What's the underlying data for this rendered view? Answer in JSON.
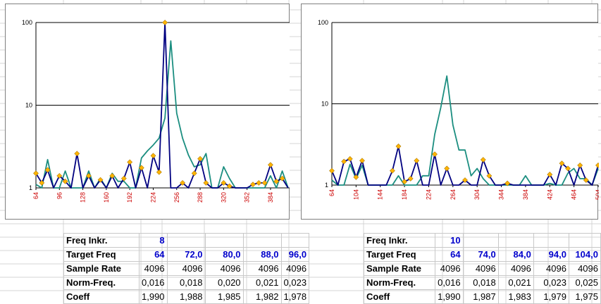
{
  "colors": {
    "series_main": "#000080",
    "series_ref": "#1b8e80",
    "marker": "#ffb400",
    "tick_label": "#cc0000"
  },
  "chart_data": [
    {
      "type": "line",
      "yscale": "log",
      "ylim": [
        1,
        100
      ],
      "yticks": [
        "1",
        "10",
        "100"
      ],
      "xlim": [
        64,
        410
      ],
      "xticks": [
        "64",
        "96",
        "128",
        "160",
        "192",
        "224",
        "256",
        "288",
        "320",
        "352",
        "384"
      ],
      "grid": "horizontal",
      "series": [
        {
          "x": [
            64,
            72,
            80,
            88,
            96,
            104,
            112,
            120,
            128,
            136,
            144,
            152,
            160,
            168,
            176,
            184,
            192,
            200,
            208,
            216,
            224,
            232,
            240,
            248,
            256,
            264,
            272,
            280,
            288,
            296,
            304,
            312,
            320,
            328,
            336,
            344,
            352,
            360,
            368,
            376,
            384,
            392,
            400,
            408
          ],
          "values": [
            1.1,
            1.0,
            2.2,
            1.0,
            1.0,
            1.6,
            1.0,
            1.0,
            1.0,
            1.6,
            1.0,
            1.3,
            1.0,
            1.5,
            1.2,
            1.2,
            1.0,
            1.0,
            2.3,
            2.8,
            3.3,
            4.0,
            7.0,
            60.0,
            8.0,
            4.0,
            2.5,
            1.8,
            1.9,
            2.6,
            1.0,
            1.0,
            1.8,
            1.3,
            1.0,
            1.0,
            1.0,
            1.0,
            1.0,
            1.0,
            1.4,
            1.0,
            1.6,
            1.0
          ]
        },
        {
          "x": [
            64,
            72,
            80,
            88,
            96,
            104,
            112,
            120,
            128,
            136,
            144,
            152,
            160,
            168,
            176,
            184,
            192,
            200,
            208,
            216,
            224,
            232,
            240,
            248,
            256,
            264,
            272,
            280,
            288,
            296,
            304,
            312,
            320,
            328,
            336,
            344,
            352,
            360,
            368,
            376,
            384,
            392,
            400,
            408
          ],
          "values": [
            1.5,
            1.15,
            1.65,
            1.0,
            1.4,
            1.2,
            1.0,
            2.6,
            1.0,
            1.4,
            1.0,
            1.25,
            1.0,
            1.4,
            1.0,
            1.3,
            2.05,
            1.0,
            1.75,
            1.0,
            2.45,
            1.55,
            100,
            1.0,
            1.0,
            1.15,
            1.0,
            1.5,
            2.25,
            1.15,
            1.0,
            1.0,
            1.15,
            1.05,
            1.0,
            1.0,
            1.0,
            1.1,
            1.15,
            1.15,
            1.9,
            1.2,
            1.3,
            1.0
          ]
        }
      ]
    },
    {
      "type": "line",
      "yscale": "log",
      "ylim": [
        1,
        100
      ],
      "yticks": [
        "1",
        "10",
        "100"
      ],
      "xlim": [
        64,
        504
      ],
      "xticks": [
        "64",
        "104",
        "144",
        "184",
        "224",
        "264",
        "304",
        "344",
        "384",
        "424",
        "464",
        "504"
      ],
      "grid": "horizontal",
      "series": [
        {
          "x": [
            64,
            74,
            84,
            94,
            104,
            114,
            124,
            134,
            144,
            154,
            164,
            174,
            184,
            194,
            204,
            214,
            224,
            234,
            244,
            254,
            264,
            274,
            284,
            294,
            304,
            314,
            324,
            334,
            344,
            354,
            364,
            374,
            384,
            394,
            404,
            414,
            424,
            434,
            444,
            454,
            464,
            474,
            484,
            494,
            504
          ],
          "values": [
            1.15,
            1.0,
            1.0,
            1.8,
            1.2,
            1.75,
            1.0,
            1.0,
            1.0,
            1.0,
            1.0,
            1.3,
            1.0,
            1.0,
            1.0,
            1.3,
            1.3,
            4.2,
            9.0,
            22.0,
            5.5,
            2.7,
            2.7,
            1.3,
            1.6,
            1.2,
            1.0,
            1.0,
            1.0,
            1.0,
            1.0,
            1.0,
            1.3,
            1.0,
            1.0,
            1.0,
            1.05,
            1.0,
            1.0,
            1.4,
            1.6,
            1.2,
            1.2,
            1.0,
            1.6
          ]
        },
        {
          "x": [
            64,
            74,
            84,
            94,
            104,
            114,
            124,
            134,
            144,
            154,
            164,
            174,
            184,
            194,
            204,
            214,
            224,
            234,
            244,
            254,
            264,
            274,
            284,
            294,
            304,
            314,
            324,
            334,
            344,
            354,
            364,
            374,
            384,
            394,
            404,
            414,
            424,
            434,
            444,
            454,
            464,
            474,
            484,
            494,
            504
          ],
          "values": [
            1.5,
            1.0,
            1.95,
            2.1,
            1.25,
            2.0,
            1.0,
            1.0,
            1.0,
            1.0,
            1.5,
            3.0,
            1.1,
            1.2,
            2.0,
            1.0,
            1.0,
            2.4,
            1.0,
            1.6,
            1.0,
            1.0,
            1.15,
            1.0,
            1.0,
            2.05,
            1.3,
            1.0,
            1.0,
            1.05,
            1.0,
            1.0,
            1.0,
            1.0,
            1.0,
            1.0,
            1.35,
            1.0,
            1.85,
            1.6,
            1.0,
            1.75,
            1.15,
            1.0,
            1.75
          ]
        }
      ]
    }
  ],
  "tables": [
    {
      "rows": [
        {
          "label": "Freq Inkr.",
          "cells": [
            "8"
          ],
          "blue": true
        },
        {
          "label": "Target Freq",
          "cells": [
            "64",
            "72,0",
            "80,0",
            "88,0",
            "96,0"
          ],
          "blue": true
        },
        {
          "label": "Sample Rate",
          "cells": [
            "4096",
            "4096",
            "4096",
            "4096",
            "4096"
          ],
          "blue": false
        },
        {
          "label": "Norm-Freq.",
          "cells": [
            "0,016",
            "0,018",
            "0,020",
            "0,021",
            "0,023"
          ],
          "blue": false
        },
        {
          "label": "Coeff",
          "cells": [
            "1,990",
            "1,988",
            "1,985",
            "1,982",
            "1,978"
          ],
          "blue": false
        }
      ]
    },
    {
      "rows": [
        {
          "label": "Freq Inkr.",
          "cells": [
            "10"
          ],
          "blue": true
        },
        {
          "label": "Target Freq",
          "cells": [
            "64",
            "74,0",
            "84,0",
            "94,0",
            "104,0"
          ],
          "blue": true
        },
        {
          "label": "Sample Rate",
          "cells": [
            "4096",
            "4096",
            "4096",
            "4096",
            "4096"
          ],
          "blue": false
        },
        {
          "label": "Norm-Freq.",
          "cells": [
            "0,016",
            "0,018",
            "0,021",
            "0,023",
            "0,025"
          ],
          "blue": false
        },
        {
          "label": "Coeff",
          "cells": [
            "1,990",
            "1,987",
            "1,983",
            "1,979",
            "1,975"
          ],
          "blue": false
        }
      ]
    }
  ]
}
